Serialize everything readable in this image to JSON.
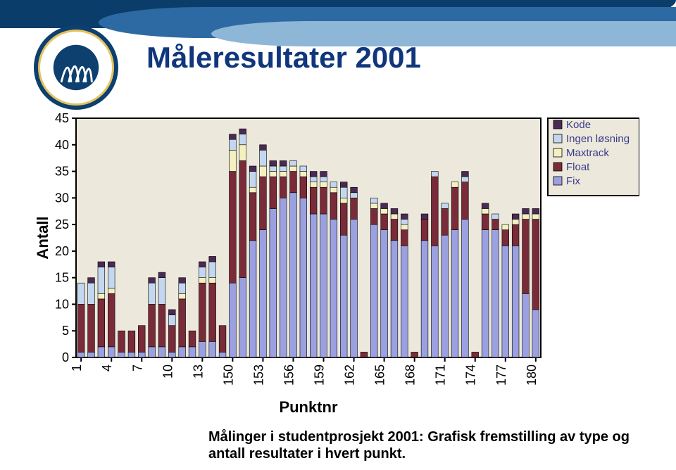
{
  "title": {
    "text": "Måleresultater 2001",
    "fontsize": 42,
    "color": "#10367c"
  },
  "caption": {
    "line1": "Målinger i studentprosjekt 2001: Grafisk fremstilling av type og",
    "line2": "antall resultater i hvert punkt."
  },
  "chart": {
    "type": "stacked-bar",
    "background": "#ece9dc",
    "ylabel": "Antall",
    "xlabel": "Punktnr",
    "ylim": [
      0,
      45
    ],
    "ytick_step": 5,
    "x_ticks": [
      "1",
      "4",
      "7",
      "10",
      "13",
      "150",
      "153",
      "156",
      "159",
      "162",
      "165",
      "168",
      "171",
      "174",
      "177",
      "180"
    ],
    "series_order": [
      "Fix",
      "Float",
      "Maxtrack",
      "Ingen løsning",
      "Kode"
    ],
    "colors": {
      "Fix": "#9aa0e0",
      "Float": "#7a2b3a",
      "Maxtrack": "#f5f0c0",
      "Ingen løsning": "#c3d8f0",
      "Kode": "#4a2a55"
    },
    "legend_label_color": "#3a3a8a",
    "points": [
      {
        "id": "1",
        "v": {
          "Fix": 1,
          "Float": 9,
          "Maxtrack": 0,
          "Ingen løsning": 4,
          "Kode": 0
        }
      },
      {
        "id": "2",
        "v": {
          "Fix": 1,
          "Float": 9,
          "Maxtrack": 0,
          "Ingen løsning": 4,
          "Kode": 1
        }
      },
      {
        "id": "3",
        "v": {
          "Fix": 2,
          "Float": 9,
          "Maxtrack": 1,
          "Ingen løsning": 5,
          "Kode": 1
        }
      },
      {
        "id": "4",
        "v": {
          "Fix": 2,
          "Float": 10,
          "Maxtrack": 1,
          "Ingen løsning": 4,
          "Kode": 1
        }
      },
      {
        "id": "5",
        "v": {
          "Fix": 1,
          "Float": 4,
          "Maxtrack": 0,
          "Ingen løsning": 0,
          "Kode": 0
        }
      },
      {
        "id": "6",
        "v": {
          "Fix": 1,
          "Float": 4,
          "Maxtrack": 0,
          "Ingen løsning": 0,
          "Kode": 0
        }
      },
      {
        "id": "7",
        "v": {
          "Fix": 1,
          "Float": 5,
          "Maxtrack": 0,
          "Ingen løsning": 0,
          "Kode": 0
        }
      },
      {
        "id": "8",
        "v": {
          "Fix": 2,
          "Float": 8,
          "Maxtrack": 0,
          "Ingen løsning": 4,
          "Kode": 1
        }
      },
      {
        "id": "9",
        "v": {
          "Fix": 2,
          "Float": 8,
          "Maxtrack": 0,
          "Ingen løsning": 5,
          "Kode": 1
        }
      },
      {
        "id": "10",
        "v": {
          "Fix": 1,
          "Float": 5,
          "Maxtrack": 0,
          "Ingen løsning": 2,
          "Kode": 1
        }
      },
      {
        "id": "11",
        "v": {
          "Fix": 2,
          "Float": 9,
          "Maxtrack": 1,
          "Ingen løsning": 2,
          "Kode": 1
        }
      },
      {
        "id": "12",
        "v": {
          "Fix": 2,
          "Float": 3,
          "Maxtrack": 0,
          "Ingen løsning": 0,
          "Kode": 0
        }
      },
      {
        "id": "13",
        "v": {
          "Fix": 3,
          "Float": 11,
          "Maxtrack": 1,
          "Ingen løsning": 2,
          "Kode": 1
        }
      },
      {
        "id": "14",
        "v": {
          "Fix": 3,
          "Float": 11,
          "Maxtrack": 1,
          "Ingen løsning": 3,
          "Kode": 1
        }
      },
      {
        "id": "15",
        "v": {
          "Fix": 1,
          "Float": 5,
          "Maxtrack": 0,
          "Ingen løsning": 0,
          "Kode": 0
        }
      },
      {
        "id": "150",
        "v": {
          "Fix": 14,
          "Float": 21,
          "Maxtrack": 4,
          "Ingen løsning": 2,
          "Kode": 1
        }
      },
      {
        "id": "151",
        "v": {
          "Fix": 15,
          "Float": 22,
          "Maxtrack": 3,
          "Ingen løsning": 2,
          "Kode": 1
        }
      },
      {
        "id": "152",
        "v": {
          "Fix": 22,
          "Float": 9,
          "Maxtrack": 1,
          "Ingen løsning": 3,
          "Kode": 1
        }
      },
      {
        "id": "153",
        "v": {
          "Fix": 24,
          "Float": 10,
          "Maxtrack": 2,
          "Ingen løsning": 3,
          "Kode": 1
        }
      },
      {
        "id": "154",
        "v": {
          "Fix": 28,
          "Float": 6,
          "Maxtrack": 1,
          "Ingen løsning": 1,
          "Kode": 1
        }
      },
      {
        "id": "155",
        "v": {
          "Fix": 30,
          "Float": 4,
          "Maxtrack": 1,
          "Ingen løsning": 1,
          "Kode": 1
        }
      },
      {
        "id": "156",
        "v": {
          "Fix": 31,
          "Float": 4,
          "Maxtrack": 1,
          "Ingen løsning": 1,
          "Kode": 0
        }
      },
      {
        "id": "157",
        "v": {
          "Fix": 30,
          "Float": 4,
          "Maxtrack": 1,
          "Ingen løsning": 1,
          "Kode": 0
        }
      },
      {
        "id": "158",
        "v": {
          "Fix": 27,
          "Float": 5,
          "Maxtrack": 1,
          "Ingen løsning": 1,
          "Kode": 1
        }
      },
      {
        "id": "159",
        "v": {
          "Fix": 27,
          "Float": 5,
          "Maxtrack": 1,
          "Ingen løsning": 1,
          "Kode": 1
        }
      },
      {
        "id": "160",
        "v": {
          "Fix": 26,
          "Float": 5,
          "Maxtrack": 1,
          "Ingen løsning": 1,
          "Kode": 0
        }
      },
      {
        "id": "161",
        "v": {
          "Fix": 23,
          "Float": 6,
          "Maxtrack": 1,
          "Ingen løsning": 2,
          "Kode": 1
        }
      },
      {
        "id": "162",
        "v": {
          "Fix": 26,
          "Float": 4,
          "Maxtrack": 0,
          "Ingen løsning": 1,
          "Kode": 1
        }
      },
      {
        "id": "163",
        "v": {
          "Fix": 0,
          "Float": 1,
          "Maxtrack": 0,
          "Ingen løsning": 0,
          "Kode": 0
        }
      },
      {
        "id": "164",
        "v": {
          "Fix": 25,
          "Float": 3,
          "Maxtrack": 1,
          "Ingen løsning": 1,
          "Kode": 0
        }
      },
      {
        "id": "165",
        "v": {
          "Fix": 24,
          "Float": 3,
          "Maxtrack": 1,
          "Ingen løsning": 0,
          "Kode": 1
        }
      },
      {
        "id": "166",
        "v": {
          "Fix": 22,
          "Float": 4,
          "Maxtrack": 1,
          "Ingen løsning": 0,
          "Kode": 1
        }
      },
      {
        "id": "167",
        "v": {
          "Fix": 21,
          "Float": 3,
          "Maxtrack": 1,
          "Ingen løsning": 1,
          "Kode": 1
        }
      },
      {
        "id": "168",
        "v": {
          "Fix": 0,
          "Float": 1,
          "Maxtrack": 0,
          "Ingen løsning": 0,
          "Kode": 0
        }
      },
      {
        "id": "169",
        "v": {
          "Fix": 22,
          "Float": 4,
          "Maxtrack": 0,
          "Ingen løsning": 0,
          "Kode": 1
        }
      },
      {
        "id": "170",
        "v": {
          "Fix": 21,
          "Float": 13,
          "Maxtrack": 0,
          "Ingen løsning": 1,
          "Kode": 0
        }
      },
      {
        "id": "171",
        "v": {
          "Fix": 23,
          "Float": 5,
          "Maxtrack": 0,
          "Ingen løsning": 1,
          "Kode": 0
        }
      },
      {
        "id": "172",
        "v": {
          "Fix": 24,
          "Float": 8,
          "Maxtrack": 1,
          "Ingen løsning": 0,
          "Kode": 0
        }
      },
      {
        "id": "173",
        "v": {
          "Fix": 26,
          "Float": 7,
          "Maxtrack": 0,
          "Ingen løsning": 1,
          "Kode": 1
        }
      },
      {
        "id": "174",
        "v": {
          "Fix": 0,
          "Float": 1,
          "Maxtrack": 0,
          "Ingen løsning": 0,
          "Kode": 0
        }
      },
      {
        "id": "175",
        "v": {
          "Fix": 24,
          "Float": 3,
          "Maxtrack": 1,
          "Ingen løsning": 0,
          "Kode": 1
        }
      },
      {
        "id": "176",
        "v": {
          "Fix": 24,
          "Float": 2,
          "Maxtrack": 0,
          "Ingen løsning": 1,
          "Kode": 0
        }
      },
      {
        "id": "177",
        "v": {
          "Fix": 21,
          "Float": 3,
          "Maxtrack": 1,
          "Ingen løsning": 0,
          "Kode": 0
        }
      },
      {
        "id": "178",
        "v": {
          "Fix": 21,
          "Float": 4,
          "Maxtrack": 1,
          "Ingen løsning": 0,
          "Kode": 1
        }
      },
      {
        "id": "179",
        "v": {
          "Fix": 12,
          "Float": 14,
          "Maxtrack": 1,
          "Ingen løsning": 0,
          "Kode": 1
        }
      },
      {
        "id": "180",
        "v": {
          "Fix": 9,
          "Float": 17,
          "Maxtrack": 1,
          "Ingen løsning": 0,
          "Kode": 1
        }
      }
    ]
  }
}
